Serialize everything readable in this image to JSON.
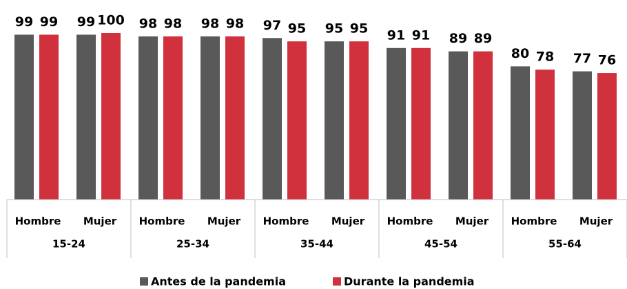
{
  "chart_data": {
    "type": "bar",
    "categories": [
      "Hombre",
      "Mujer",
      "Hombre",
      "Mujer",
      "Hombre",
      "Mujer",
      "Hombre",
      "Mujer",
      "Hombre",
      "Mujer"
    ],
    "category_groups": [
      "15-24",
      "25-34",
      "35-44",
      "45-54",
      "55-64"
    ],
    "series": [
      {
        "name": "Antes de la pandemia",
        "color": "#595959",
        "values": [
          99,
          99,
          98,
          98,
          97,
          95,
          91,
          89,
          80,
          77
        ]
      },
      {
        "name": "Durante la pandemia",
        "color": "#d0313d",
        "values": [
          99,
          100,
          98,
          98,
          95,
          95,
          91,
          89,
          78,
          76
        ]
      }
    ],
    "ylim": [
      0,
      100
    ]
  }
}
